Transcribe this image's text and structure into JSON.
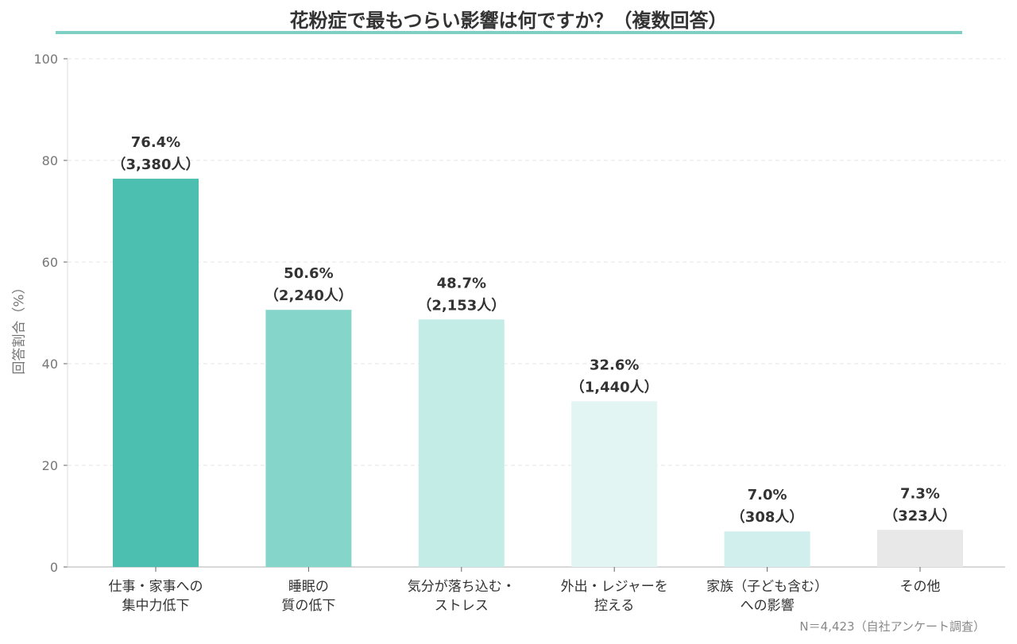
{
  "chart_data": {
    "type": "bar",
    "title": "花粉症で最もつらい影響は何ですか？（複数回答）",
    "ylabel": "回答割合（%）",
    "xlabel": "",
    "ylim": [
      0,
      100
    ],
    "yticks": [
      0,
      20,
      40,
      60,
      80,
      100
    ],
    "grid": true,
    "categories": [
      [
        "仕事・家事への",
        "集中力低下"
      ],
      [
        "睡眠の",
        "質の低下"
      ],
      [
        "気分が落ち込む・",
        "ストレス"
      ],
      [
        "外出・レジャーを",
        "控える"
      ],
      [
        "家族（子ども含む）",
        "への影響"
      ],
      [
        "その他"
      ]
    ],
    "values": [
      76.4,
      50.6,
      48.7,
      32.6,
      7.0,
      7.3
    ],
    "percent_labels": [
      "76.4%",
      "50.6%",
      "48.7%",
      "32.6%",
      "7.0%",
      "7.3%"
    ],
    "count_labels": [
      "（3,380人）",
      "（2,240人）",
      "（2,153人）",
      "（1,440人）",
      "（308人）",
      "（323人）"
    ],
    "colors": [
      "#4dbfb0",
      "#86d5cb",
      "#c3ece7",
      "#e2f5f2",
      "#d1efec",
      "#e8e8e8"
    ],
    "note": "N＝4,423（自社アンケート調査）"
  },
  "accent_color": "#7ecfc4"
}
